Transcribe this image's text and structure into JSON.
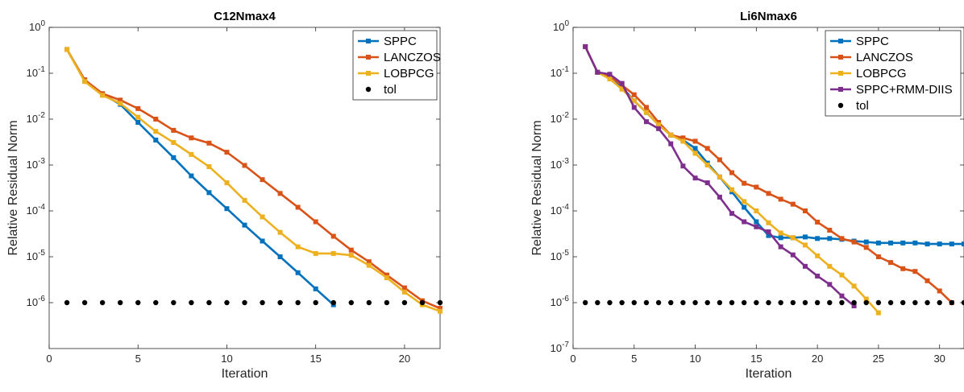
{
  "chart_data": [
    {
      "type": "line",
      "title": "C12Nmax4",
      "xlabel": "Iteration",
      "ylabel": "Relative Residual Norm",
      "xlim": [
        0,
        22
      ],
      "ylim": [
        1e-07,
        1
      ],
      "yscale": "log",
      "x_ticks": [
        0,
        5,
        10,
        15,
        20
      ],
      "x_tick_labels": [
        "0",
        "5",
        "10",
        "15",
        "20"
      ],
      "y_ticks": [
        1,
        0.1,
        0.01,
        0.001,
        0.0001,
        1e-05,
        1e-06
      ],
      "y_tick_labels": [
        {
          "base": "10",
          "exp": "0"
        },
        {
          "base": "10",
          "exp": "-1"
        },
        {
          "base": "10",
          "exp": "-2"
        },
        {
          "base": "10",
          "exp": "-3"
        },
        {
          "base": "10",
          "exp": "-4"
        },
        {
          "base": "10",
          "exp": "-5"
        },
        {
          "base": "10",
          "exp": "-6"
        }
      ],
      "grid": false,
      "legend_position": "top-right",
      "series": [
        {
          "name": "SPPC",
          "color": "#0072BD",
          "marker": "square",
          "x": [
            1,
            2,
            3,
            4,
            5,
            6,
            7,
            8,
            9,
            10,
            11,
            12,
            13,
            14,
            15,
            16
          ],
          "y": [
            0.33,
            0.07,
            0.035,
            0.021,
            0.0085,
            0.0035,
            0.00145,
            0.00058,
            0.00025,
            0.000112,
            4.9e-05,
            2.2e-05,
            1e-05,
            4.5e-06,
            2e-06,
            9e-07
          ]
        },
        {
          "name": "LANCZOS",
          "color": "#D95319",
          "marker": "square",
          "x": [
            1,
            2,
            3,
            4,
            5,
            6,
            7,
            8,
            9,
            10,
            11,
            12,
            13,
            14,
            15,
            16,
            17,
            18,
            19,
            20,
            21,
            22
          ],
          "y": [
            0.33,
            0.072,
            0.036,
            0.026,
            0.017,
            0.01,
            0.0057,
            0.0039,
            0.003,
            0.0019,
            0.00098,
            0.00048,
            0.00024,
            0.00012,
            5.8e-05,
            2.8e-05,
            1.4e-05,
            7.8e-06,
            4e-06,
            2.1e-06,
            1.1e-06,
            7.5e-07
          ]
        },
        {
          "name": "LOBPCG",
          "color": "#EDB120",
          "marker": "square",
          "x": [
            1,
            2,
            3,
            4,
            5,
            6,
            7,
            8,
            9,
            10,
            11,
            12,
            13,
            14,
            15,
            16,
            17,
            18,
            19,
            20,
            21,
            22
          ],
          "y": [
            0.33,
            0.066,
            0.033,
            0.022,
            0.011,
            0.0054,
            0.0031,
            0.0017,
            0.00092,
            0.00041,
            0.00017,
            7.4e-05,
            3.4e-05,
            1.65e-05,
            1.18e-05,
            1.18e-05,
            1.08e-05,
            6.5e-06,
            3.5e-06,
            1.7e-06,
            9e-07,
            6.5e-07
          ]
        },
        {
          "name": "tol",
          "color": "#000000",
          "marker": "circle-only",
          "x": [
            1,
            2,
            3,
            4,
            5,
            6,
            7,
            8,
            9,
            10,
            11,
            12,
            13,
            14,
            15,
            16,
            17,
            18,
            19,
            20,
            21,
            22
          ],
          "y": [
            1e-06,
            1e-06,
            1e-06,
            1e-06,
            1e-06,
            1e-06,
            1e-06,
            1e-06,
            1e-06,
            1e-06,
            1e-06,
            1e-06,
            1e-06,
            1e-06,
            1e-06,
            1e-06,
            1e-06,
            1e-06,
            1e-06,
            1e-06,
            1e-06,
            1e-06
          ]
        }
      ]
    },
    {
      "type": "line",
      "title": "Li6Nmax6",
      "xlabel": "Iteration",
      "ylabel": "Relative Residual Norm",
      "xlim": [
        0,
        32
      ],
      "ylim": [
        1e-07,
        1
      ],
      "yscale": "log",
      "x_ticks": [
        0,
        5,
        10,
        15,
        20,
        25,
        30
      ],
      "x_tick_labels": [
        "0",
        "5",
        "10",
        "15",
        "20",
        "25",
        "30"
      ],
      "y_ticks": [
        1,
        0.1,
        0.01,
        0.001,
        0.0001,
        1e-05,
        1e-06,
        1e-07
      ],
      "y_tick_labels": [
        {
          "base": "10",
          "exp": "0"
        },
        {
          "base": "10",
          "exp": "-1"
        },
        {
          "base": "10",
          "exp": "-2"
        },
        {
          "base": "10",
          "exp": "-3"
        },
        {
          "base": "10",
          "exp": "-4"
        },
        {
          "base": "10",
          "exp": "-5"
        },
        {
          "base": "10",
          "exp": "-6"
        },
        {
          "base": "10",
          "exp": "-7"
        }
      ],
      "grid": false,
      "legend_position": "top-right",
      "series": [
        {
          "name": "SPPC",
          "color": "#0072BD",
          "marker": "square",
          "x": [
            1,
            2,
            3,
            4,
            5,
            6,
            7,
            8,
            9,
            10,
            11,
            12,
            13,
            14,
            15,
            16,
            17,
            18,
            19,
            20,
            21,
            22,
            23,
            24,
            25,
            26,
            27,
            28,
            29,
            30,
            31,
            32
          ],
          "y": [
            0.38,
            0.105,
            0.09,
            0.05,
            0.025,
            0.014,
            0.0075,
            0.0045,
            0.0035,
            0.0023,
            0.0011,
            0.00055,
            0.00026,
            0.00012,
            5.8e-05,
            2.9e-05,
            2.6e-05,
            2.6e-05,
            2.7e-05,
            2.5e-05,
            2.5e-05,
            2.4e-05,
            2.2e-05,
            2.1e-05,
            2e-05,
            2e-05,
            2e-05,
            2e-05,
            1.9e-05,
            1.9e-05,
            1.9e-05,
            1.9e-05
          ]
        },
        {
          "name": "LANCZOS",
          "color": "#D95319",
          "marker": "square",
          "x": [
            1,
            2,
            3,
            4,
            5,
            6,
            7,
            8,
            9,
            10,
            11,
            12,
            13,
            14,
            15,
            16,
            17,
            18,
            19,
            20,
            21,
            22,
            23,
            24,
            25,
            26,
            27,
            28,
            29,
            30,
            31
          ],
          "y": [
            0.38,
            0.105,
            0.085,
            0.055,
            0.034,
            0.018,
            0.0085,
            0.0045,
            0.0039,
            0.0033,
            0.0023,
            0.0013,
            0.00068,
            0.0004,
            0.00033,
            0.00024,
            0.00018,
            0.00014,
            0.0001,
            5.7e-05,
            3.8e-05,
            2.5e-05,
            2.1e-05,
            1.6e-05,
            1e-05,
            7.5e-06,
            5.5e-06,
            4.8e-06,
            3e-06,
            1.8e-06,
            1e-06
          ]
        },
        {
          "name": "LOBPCG",
          "color": "#EDB120",
          "marker": "square",
          "x": [
            1,
            2,
            3,
            4,
            5,
            6,
            7,
            8,
            9,
            10,
            11,
            12,
            13,
            14,
            15,
            16,
            17,
            18,
            19,
            20,
            21,
            22,
            23,
            24,
            25
          ],
          "y": [
            0.38,
            0.105,
            0.075,
            0.045,
            0.025,
            0.014,
            0.0075,
            0.0045,
            0.0033,
            0.0018,
            0.001,
            0.00055,
            0.00029,
            0.00016,
            0.0001,
            5.5e-05,
            3.3e-05,
            2.6e-05,
            1.8e-05,
            1.05e-05,
            6.2e-06,
            4e-06,
            2.3e-06,
            1.2e-06,
            6e-07
          ]
        },
        {
          "name": "SPPC+RMM-DIIS",
          "color": "#7E2F8E",
          "marker": "square",
          "x": [
            1,
            2,
            3,
            4,
            5,
            6,
            7,
            8,
            9,
            10,
            11,
            12,
            13,
            14,
            15,
            16,
            17,
            18,
            19,
            20,
            21,
            22,
            23
          ],
          "y": [
            0.38,
            0.105,
            0.095,
            0.06,
            0.018,
            0.0088,
            0.0062,
            0.0029,
            0.00095,
            0.00052,
            0.00041,
            0.0002,
            8.8e-05,
            5.8e-05,
            4.5e-05,
            3.5e-05,
            1.65e-05,
            1.1e-05,
            6.2e-06,
            3.8e-06,
            2.5e-06,
            1.4e-06,
            8.5e-07
          ]
        },
        {
          "name": "tol",
          "color": "#000000",
          "marker": "circle-only",
          "x": [
            1,
            2,
            3,
            4,
            5,
            6,
            7,
            8,
            9,
            10,
            11,
            12,
            13,
            14,
            15,
            16,
            17,
            18,
            19,
            20,
            21,
            22,
            23,
            24,
            25,
            26,
            27,
            28,
            29,
            30,
            31,
            32
          ],
          "y": [
            1e-06,
            1e-06,
            1e-06,
            1e-06,
            1e-06,
            1e-06,
            1e-06,
            1e-06,
            1e-06,
            1e-06,
            1e-06,
            1e-06,
            1e-06,
            1e-06,
            1e-06,
            1e-06,
            1e-06,
            1e-06,
            1e-06,
            1e-06,
            1e-06,
            1e-06,
            1e-06,
            1e-06,
            1e-06,
            1e-06,
            1e-06,
            1e-06,
            1e-06,
            1e-06,
            1e-06,
            1e-06
          ]
        }
      ]
    }
  ]
}
